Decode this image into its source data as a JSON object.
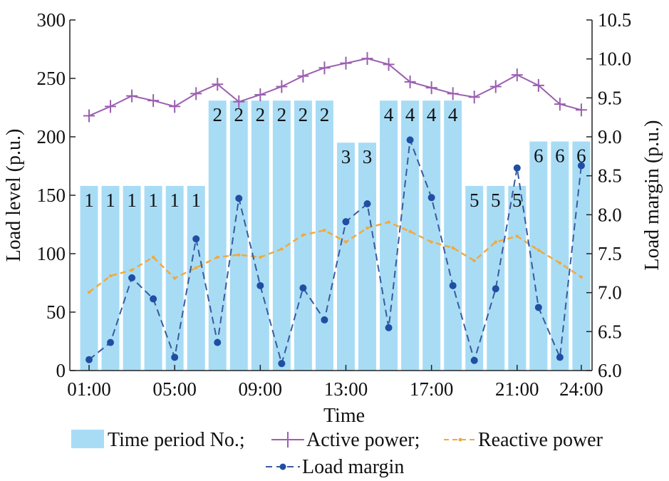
{
  "chart_data": {
    "type": "bar+line",
    "xlabel": "Time",
    "ylabel_left": "Load level (p.u.)",
    "ylabel_right": "Load margin (p.u.)",
    "ylim_left": [
      0,
      300
    ],
    "ylim_right": [
      6.0,
      10.5
    ],
    "yticks_left": [
      "0",
      "50",
      "100",
      "150",
      "200",
      "250",
      "300"
    ],
    "yticks_right": [
      "6.0",
      "6.5",
      "7.0",
      "7.5",
      "8.0",
      "8.5",
      "9.0",
      "9.5",
      "10.0",
      "10.5"
    ],
    "xticks": [
      {
        "hour": 1,
        "label": "01:00"
      },
      {
        "hour": 5,
        "label": "05:00"
      },
      {
        "hour": 9,
        "label": "09:00"
      },
      {
        "hour": 13,
        "label": "13:00"
      },
      {
        "hour": 17,
        "label": "17:00"
      },
      {
        "hour": 21,
        "label": "21:00"
      },
      {
        "hour": 24,
        "label": "24:00"
      }
    ],
    "hours": [
      1,
      2,
      3,
      4,
      5,
      6,
      7,
      8,
      9,
      10,
      11,
      12,
      13,
      14,
      15,
      16,
      17,
      18,
      19,
      20,
      21,
      22,
      23,
      24
    ],
    "series": [
      {
        "name": "Time period No.",
        "kind": "bar",
        "color": "#a8dcf5",
        "values": [
          158,
          158,
          158,
          158,
          158,
          158,
          231,
          231,
          231,
          231,
          231,
          231,
          195,
          195,
          231,
          231,
          231,
          231,
          158,
          158,
          158,
          196,
          196,
          196
        ],
        "period_labels": [
          "1",
          "1",
          "1",
          "1",
          "1",
          "1",
          "2",
          "2",
          "2",
          "2",
          "2",
          "2",
          "3",
          "3",
          "4",
          "4",
          "4",
          "4",
          "5",
          "5",
          "5",
          "6",
          "6",
          "6"
        ]
      },
      {
        "name": "Active power",
        "kind": "line",
        "axis": "left",
        "color": "#9b5fb0",
        "values": [
          218,
          226,
          235,
          231,
          226,
          237,
          245,
          230,
          236,
          243,
          252,
          259,
          263,
          267,
          262,
          247,
          242,
          237,
          234,
          243,
          253,
          244,
          228,
          223
        ]
      },
      {
        "name": "Reactive power",
        "kind": "line",
        "axis": "left",
        "color": "#f2a93b",
        "values": [
          67,
          81,
          86,
          97,
          79,
          88,
          97,
          99,
          97,
          104,
          116,
          120,
          110,
          122,
          127,
          119,
          110,
          105,
          94,
          110,
          115,
          103,
          92,
          80
        ]
      },
      {
        "name": "Load margin",
        "kind": "line",
        "axis": "right",
        "color": "#3a5a9e",
        "marker_color": "#1f4ea3",
        "values": [
          6.14,
          6.36,
          7.19,
          6.92,
          6.17,
          7.69,
          6.36,
          8.21,
          7.09,
          6.09,
          7.06,
          6.65,
          7.91,
          8.14,
          6.55,
          8.96,
          8.22,
          7.09,
          6.13,
          7.05,
          8.6,
          6.81,
          6.17,
          8.63
        ]
      }
    ],
    "legend": {
      "items": [
        {
          "label": "Time period No.;"
        },
        {
          "label": "Active power;"
        },
        {
          "label": "Reactive power"
        },
        {
          "label": "Load margin"
        }
      ]
    }
  }
}
